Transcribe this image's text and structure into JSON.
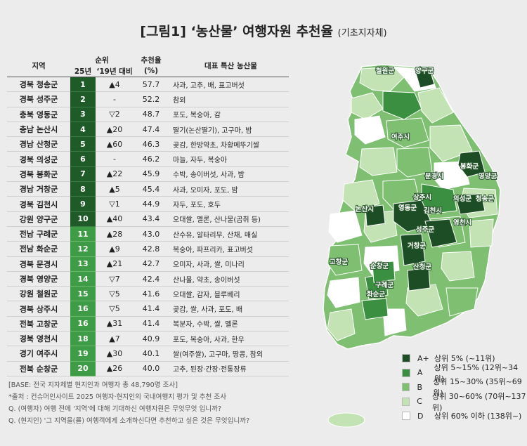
{
  "title": {
    "main": "[그림1] ‘농산물’ 여행자원 추천율",
    "sub": "(기초지자체)"
  },
  "table": {
    "headers": {
      "region": "지역",
      "rank_group": "순위",
      "rank25": "25년",
      "vs19": "‘19년 대비",
      "rate": "추천율",
      "rate_unit": "(%)",
      "products": "대표 특산 농산물"
    },
    "colors": {
      "top10": "#1f5a29",
      "rest": "#3f9c46"
    },
    "rows": [
      {
        "region": "경북 청송군",
        "rank": "1",
        "change": "▲4",
        "rate": "57.7",
        "products": "사과, 고추, 배, 표고버섯"
      },
      {
        "region": "경북 성주군",
        "rank": "2",
        "change": "-",
        "rate": "52.2",
        "products": "참외"
      },
      {
        "region": "충북 영동군",
        "rank": "3",
        "change": "▽2",
        "rate": "48.7",
        "products": "포도, 복숭아, 감"
      },
      {
        "region": "충남 논산시",
        "rank": "4",
        "change": "▲20",
        "rate": "47.4",
        "products": "딸기(논산딸기), 고구마, 밤"
      },
      {
        "region": "경남 산청군",
        "rank": "5",
        "change": "▲60",
        "rate": "46.3",
        "products": "곶감, 한방약초, 차황메뚜기쌀"
      },
      {
        "region": "경북 의성군",
        "rank": "6",
        "change": "-",
        "rate": "46.2",
        "products": "마늘, 자두, 복숭아"
      },
      {
        "region": "경북 봉화군",
        "rank": "7",
        "change": "▲22",
        "rate": "45.9",
        "products": "수박, 송이버섯, 사과, 밤"
      },
      {
        "region": "경남 거창군",
        "rank": "8",
        "change": "▲5",
        "rate": "45.4",
        "products": "사과, 오미자, 포도, 밤"
      },
      {
        "region": "경북 김천시",
        "rank": "9",
        "change": "▽1",
        "rate": "44.9",
        "products": "자두, 포도, 호두"
      },
      {
        "region": "강원 양구군",
        "rank": "10",
        "change": "▲40",
        "rate": "43.4",
        "products": "오대쌀, 멜론, 산나물(곰취 등)"
      },
      {
        "region": "전남 구례군",
        "rank": "11",
        "change": "▲28",
        "rate": "43.0",
        "products": "산수유, 알타리무, 산채, 매실"
      },
      {
        "region": "전남 화순군",
        "rank": "12",
        "change": "▲9",
        "rate": "42.8",
        "products": "복숭아, 파프리카, 표고버섯"
      },
      {
        "region": "경북 문경시",
        "rank": "13",
        "change": "▲21",
        "rate": "42.7",
        "products": "오미자, 사과, 쌀, 미나리"
      },
      {
        "region": "경북 영양군",
        "rank": "14",
        "change": "▽7",
        "rate": "42.4",
        "products": "산나물, 약초, 송이버섯"
      },
      {
        "region": "강원 철원군",
        "rank": "15",
        "change": "▽5",
        "rate": "41.6",
        "products": "오대쌀, 감자, 블루베리"
      },
      {
        "region": "경북 상주시",
        "rank": "16",
        "change": "▽5",
        "rate": "41.4",
        "products": "곶감, 쌀, 사과, 포도, 배"
      },
      {
        "region": "전북 고창군",
        "rank": "16",
        "change": "▲31",
        "rate": "41.4",
        "products": "복분자, 수박, 쌀, 멜론"
      },
      {
        "region": "경북 영천시",
        "rank": "18",
        "change": "▲7",
        "rate": "40.9",
        "products": "포도, 복숭아, 사과, 한우"
      },
      {
        "region": "경기 여주시",
        "rank": "19",
        "change": "▲30",
        "rate": "40.1",
        "products": "쌀(여주쌀), 고구마, 땅콩, 참외"
      },
      {
        "region": "전북 순창군",
        "rank": "20",
        "change": "▲26",
        "rate": "40.0",
        "products": "고추, 된장·간장·전통장류"
      }
    ]
  },
  "notes": [
    "[BASE: 전국 지자체별 현지인과 여행자 총 48,790명 조사]",
    "*출처 : 컨슈머인사이트 2025 여행자·현지인의 국내여행지 평가 및 추천 조사",
    "Q. (여행자) 여행 전에 '지역'에 대해 기대하신 여행자원은 무엇무엇 입니까?",
    "Q. (현지인) '그 지역을(를) 여행객에게 소개하신다면 추천하고 싶은 것은 무엇입니까?"
  ],
  "legend": [
    {
      "class": "A+",
      "label": "상위 5% (~11위)",
      "color": "#1d4d24"
    },
    {
      "class": "A",
      "label": "상위 5~15% (12위~34위)",
      "color": "#3a8f40"
    },
    {
      "class": "B",
      "label": "상위 15~30% (35위~69위)",
      "color": "#7fbf72"
    },
    {
      "class": "C",
      "label": "상위 30~60% (70위~137위)",
      "color": "#c4e3b5"
    },
    {
      "class": "D",
      "label": "상위 60% 이하 (138위~)",
      "color": "#ffffff"
    }
  ],
  "map_labels": [
    "철원군",
    "양구군",
    "여주시",
    "봉화군",
    "영양군",
    "문경시",
    "의성군",
    "청송군",
    "상주시",
    "논산시",
    "영동군",
    "김천시",
    "영천시",
    "성주군",
    "거창군",
    "고창군",
    "순창군",
    "산청군",
    "구례군",
    "화순군"
  ],
  "chart_data": {
    "type": "table",
    "series": [
      {
        "name": "추천율",
        "values": [
          57.7,
          52.2,
          48.7,
          47.4,
          46.3,
          46.2,
          45.9,
          45.4,
          44.9,
          43.4,
          43.0,
          42.8,
          42.7,
          42.4,
          41.6,
          41.4,
          41.4,
          40.9,
          40.1,
          40.0
        ]
      }
    ],
    "categories": [
      "경북 청송군",
      "경북 성주군",
      "충북 영동군",
      "충남 논산시",
      "경남 산청군",
      "경북 의성군",
      "경북 봉화군",
      "경남 거창군",
      "경북 김천시",
      "강원 양구군",
      "전남 구례군",
      "전남 화순군",
      "경북 문경시",
      "경북 영양군",
      "강원 철원군",
      "경북 상주시",
      "전북 고창군",
      "경북 영천시",
      "경기 여주시",
      "전북 순창군"
    ]
  }
}
